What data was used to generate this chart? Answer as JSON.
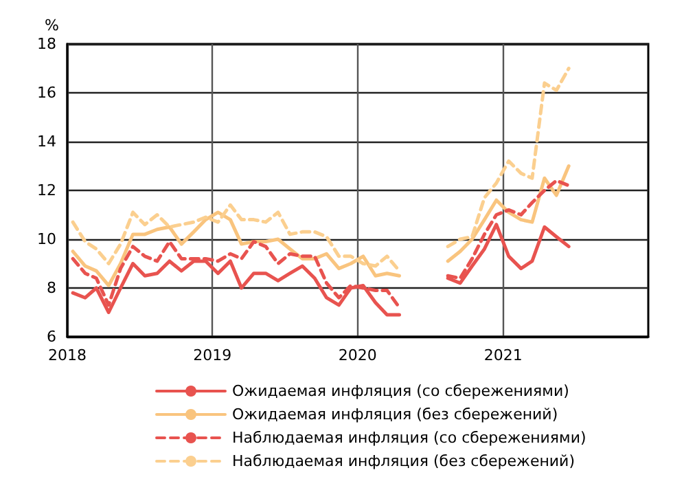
{
  "chart_data": {
    "type": "line",
    "ylabel": "%",
    "x": [
      "2018-01-15",
      "2018-02-15",
      "2018-03-15",
      "2018-04-15",
      "2018-05-15",
      "2018-06-15",
      "2018-07-15",
      "2018-08-15",
      "2018-09-15",
      "2018-10-15",
      "2018-11-15",
      "2018-12-15",
      "2019-01-15",
      "2019-02-15",
      "2019-03-15",
      "2019-04-15",
      "2019-05-15",
      "2019-06-15",
      "2019-07-15",
      "2019-08-15",
      "2019-09-15",
      "2019-10-15",
      "2019-11-15",
      "2019-12-15",
      "2020-01-15",
      "2020-02-15",
      "2020-03-15",
      "2020-04-15",
      "2020-05-15",
      "2020-06-15",
      "2020-07-15",
      "2020-08-15",
      "2020-09-15",
      "2020-10-15",
      "2020-11-15",
      "2020-12-15",
      "2021-01-15",
      "2021-02-15",
      "2021-03-15",
      "2021-04-15",
      "2021-05-15",
      "2021-06-15"
    ],
    "series": [
      {
        "name": "Ожидаемая инфляция (со сбережениями)",
        "color": "#e8534f",
        "line_style": "solid",
        "values": [
          7.8,
          7.6,
          8.0,
          7.0,
          8.0,
          9.0,
          8.5,
          8.6,
          9.1,
          8.7,
          9.1,
          9.1,
          8.6,
          9.1,
          8.0,
          8.6,
          8.6,
          8.3,
          8.6,
          8.9,
          8.4,
          7.6,
          7.3,
          8.0,
          8.1,
          7.4,
          6.9,
          6.9,
          null,
          null,
          null,
          8.4,
          8.2,
          8.9,
          9.6,
          10.6,
          9.3,
          8.8,
          9.1,
          10.5,
          10.1,
          9.7
        ]
      },
      {
        "name": "Ожидаемая инфляция (без сбережений)",
        "color": "#f9c47e",
        "line_style": "solid",
        "values": [
          9.5,
          8.9,
          8.7,
          8.1,
          9.0,
          10.2,
          10.2,
          10.4,
          10.5,
          9.8,
          10.3,
          10.8,
          11.1,
          10.8,
          9.8,
          9.9,
          9.9,
          10.0,
          9.6,
          9.2,
          9.2,
          9.4,
          8.8,
          9.0,
          9.3,
          8.5,
          8.6,
          8.5,
          null,
          null,
          null,
          9.1,
          9.5,
          10.0,
          10.8,
          11.6,
          11.1,
          10.8,
          10.7,
          12.5,
          11.8,
          13.0
        ]
      },
      {
        "name": "Наблюдаемая инфляция (со сбережениями)",
        "color": "#e8534f",
        "line_style": "dashed",
        "values": [
          9.2,
          8.6,
          8.4,
          7.3,
          8.8,
          9.7,
          9.3,
          9.1,
          9.9,
          9.2,
          9.2,
          9.2,
          9.1,
          9.4,
          9.2,
          9.9,
          9.7,
          9.0,
          9.4,
          9.3,
          9.3,
          8.2,
          7.6,
          8.1,
          8.0,
          7.9,
          7.9,
          7.2,
          null,
          null,
          null,
          8.5,
          8.4,
          9.2,
          10.2,
          11.0,
          11.2,
          11.0,
          11.5,
          12.0,
          12.4,
          12.2
        ]
      },
      {
        "name": "Наблюдаемая инфляция (без сбережений)",
        "color": "#fbcf8f",
        "line_style": "dashed",
        "values": [
          10.7,
          9.9,
          9.6,
          9.0,
          9.8,
          11.1,
          10.6,
          11.0,
          10.5,
          10.6,
          10.7,
          10.9,
          10.7,
          11.4,
          10.8,
          10.8,
          10.7,
          11.1,
          10.2,
          10.3,
          10.3,
          10.1,
          9.3,
          9.3,
          9.0,
          8.9,
          9.3,
          8.7,
          null,
          null,
          null,
          9.7,
          10.0,
          10.1,
          11.7,
          12.3,
          13.2,
          12.7,
          12.5,
          16.4,
          16.1,
          17.0
        ]
      }
    ],
    "xlim": [
      "2018",
      "2022"
    ],
    "xticks": [
      "2018",
      "2019",
      "2020",
      "2021"
    ],
    "ylim": [
      6,
      18
    ],
    "yticks": [
      6,
      8,
      10,
      12,
      14,
      16,
      18
    ],
    "grid": true,
    "legend": "bottom",
    "marker": "none"
  }
}
